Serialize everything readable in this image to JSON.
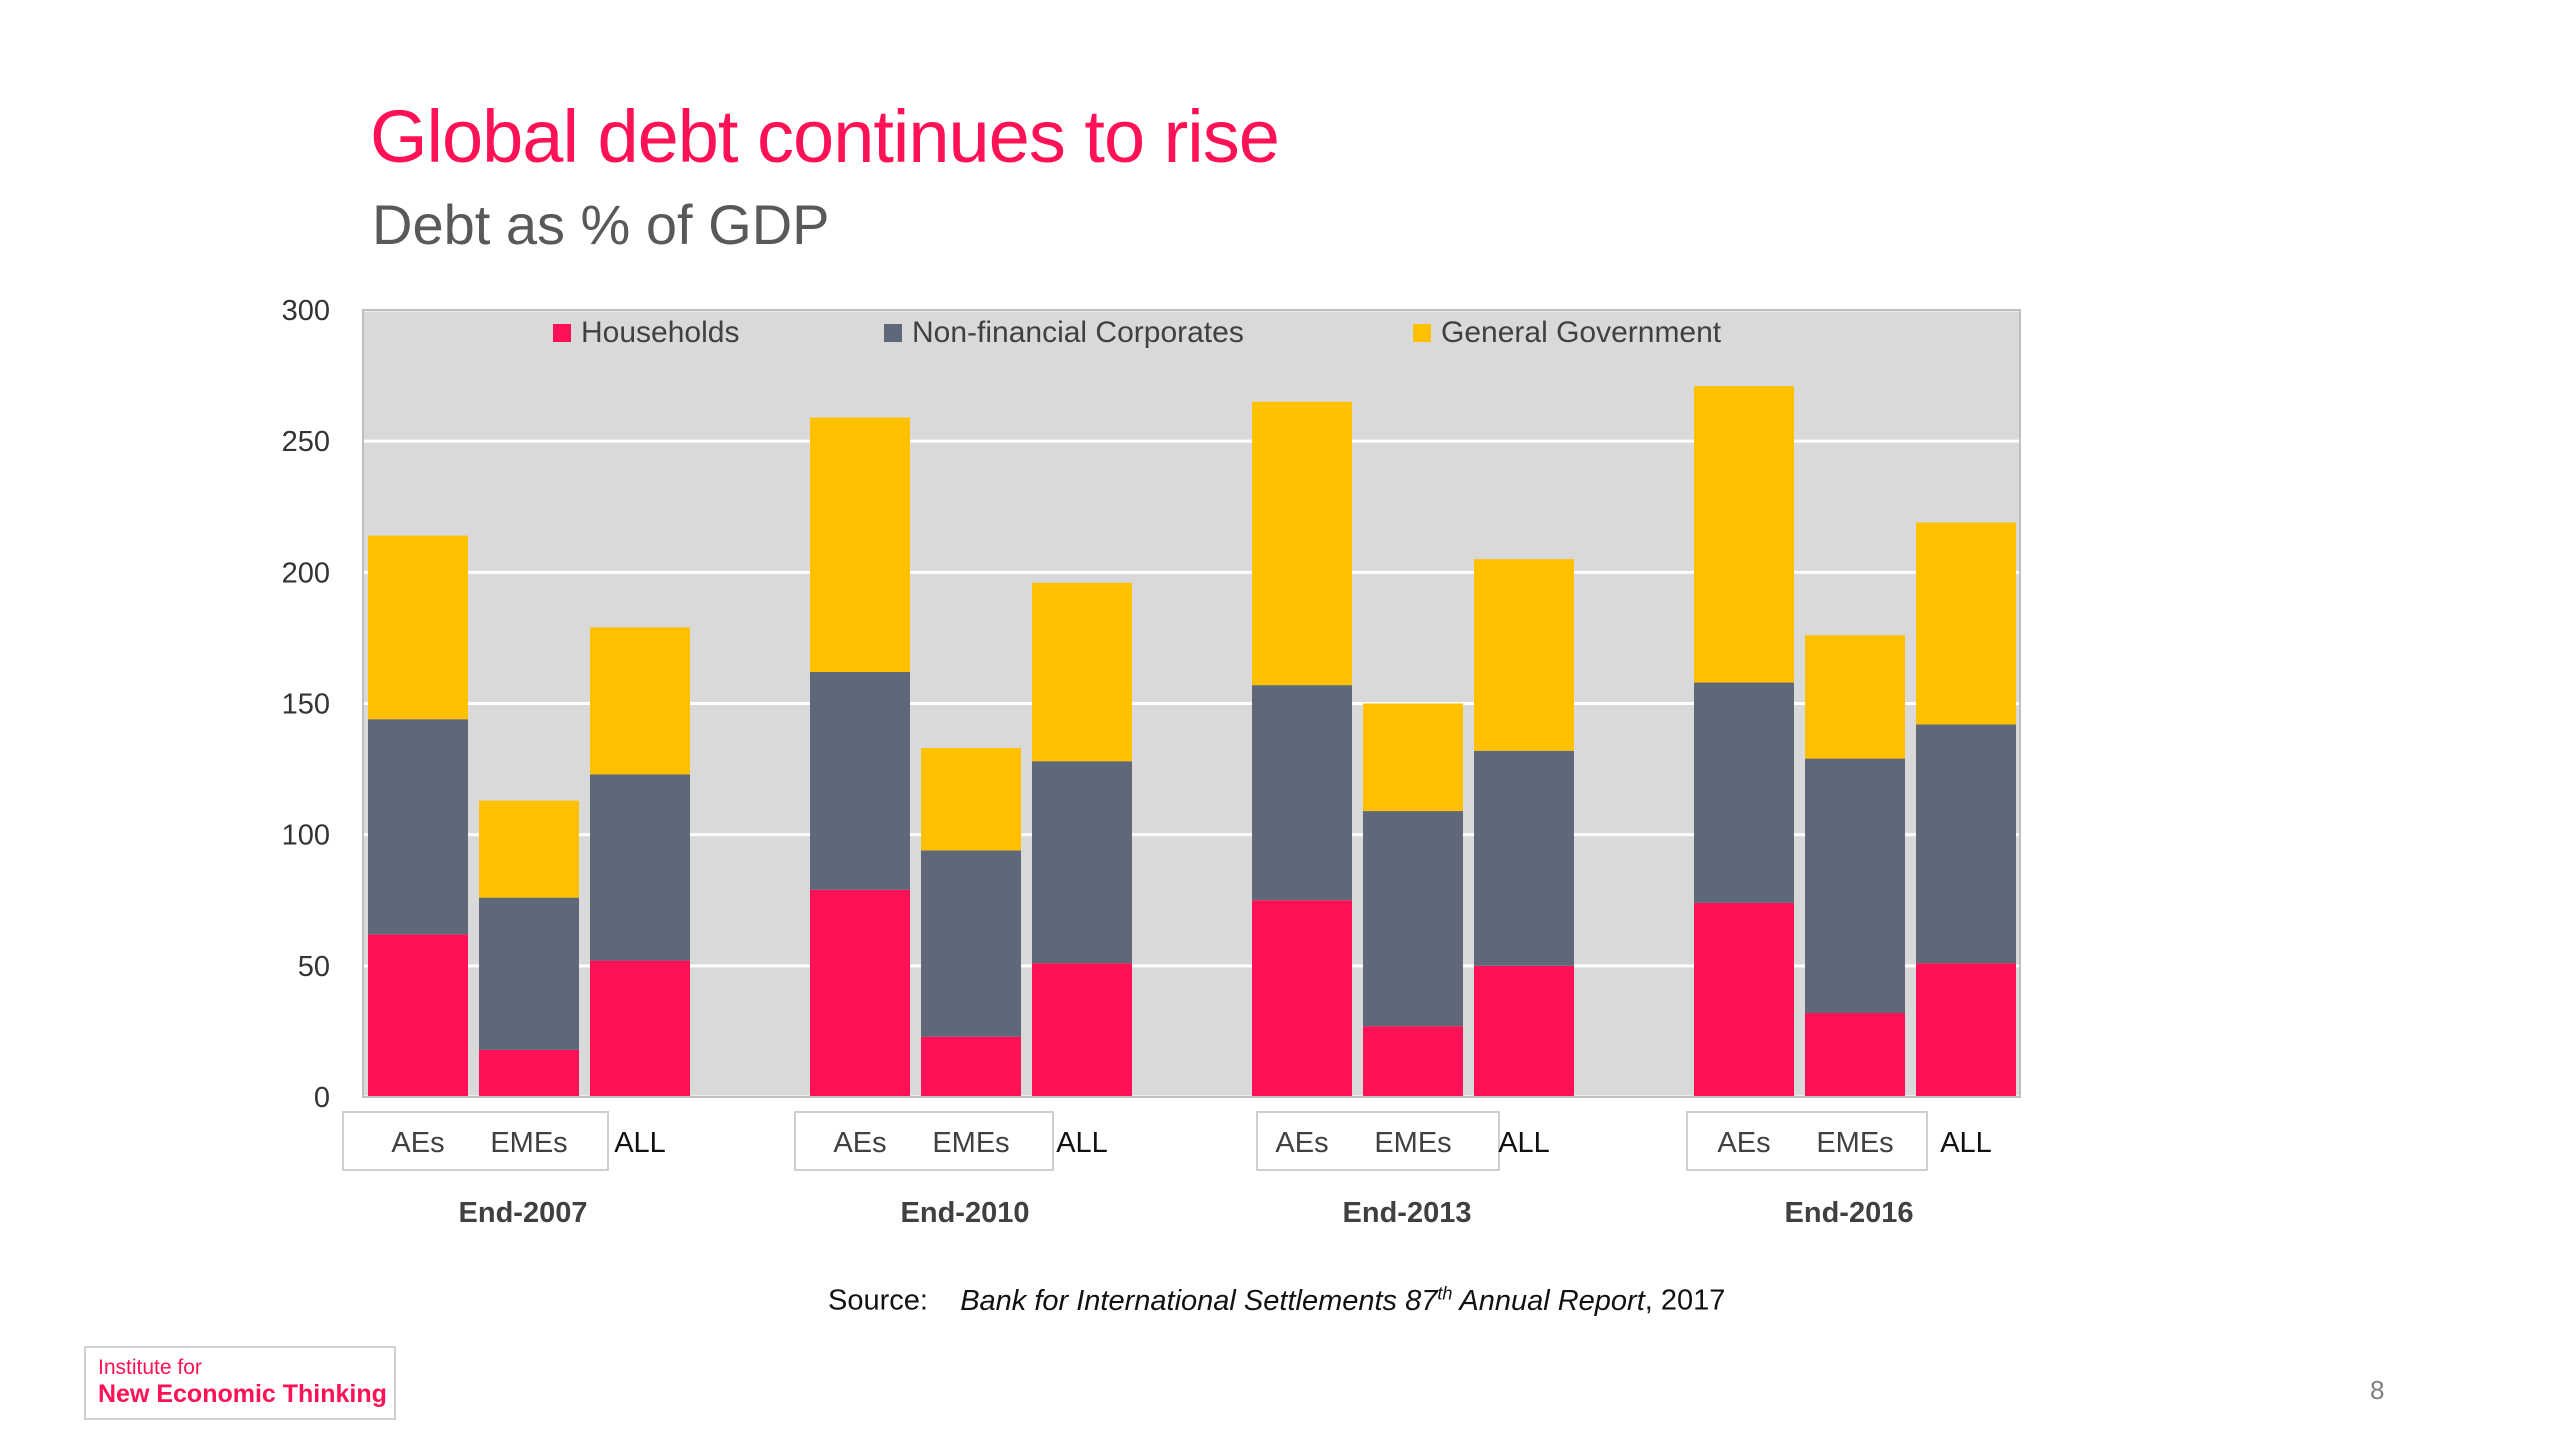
{
  "slide": {
    "title": "Global debt continues to rise",
    "subtitle": "Debt as % of GDP",
    "source_label": "Source:",
    "source_title_pre": "Bank for International Settlements 87",
    "source_title_sup": "th",
    "source_title_post": " Annual Report",
    "source_year": ", 2017",
    "logo_line1": "Institute for",
    "logo_line2": "New Economic Thinking",
    "page_number": "8"
  },
  "colors": {
    "households": "#ff1155",
    "corporates": "#5f6879",
    "government": "#ffc000",
    "plot_bg": "#d9d9d9",
    "title": "#ff1155",
    "subtitle": "#595959"
  },
  "chart_data": {
    "type": "bar",
    "stacked": true,
    "title": "",
    "xlabel": "",
    "ylabel": "",
    "ylim": [
      0,
      300
    ],
    "yticks": [
      0,
      50,
      100,
      150,
      200,
      250,
      300
    ],
    "grid": true,
    "legend_position": "top",
    "groups": [
      "End-2007",
      "End-2010",
      "End-2013",
      "End-2016"
    ],
    "categories": [
      "AEs",
      "EMEs",
      "ALL"
    ],
    "series": [
      {
        "name": "Households",
        "color": "#ff1155",
        "values": [
          [
            62,
            18,
            52
          ],
          [
            79,
            23,
            51
          ],
          [
            75,
            27,
            50
          ],
          [
            74,
            32,
            51
          ]
        ]
      },
      {
        "name": "Non-financial Corporates",
        "color": "#5f6879",
        "values": [
          [
            82,
            58,
            71
          ],
          [
            83,
            71,
            77
          ],
          [
            82,
            82,
            82
          ],
          [
            84,
            97,
            91
          ]
        ]
      },
      {
        "name": "General Government",
        "color": "#ffc000",
        "values": [
          [
            70,
            37,
            56
          ],
          [
            97,
            39,
            68
          ],
          [
            108,
            41,
            73
          ],
          [
            113,
            47,
            77
          ]
        ]
      }
    ]
  }
}
